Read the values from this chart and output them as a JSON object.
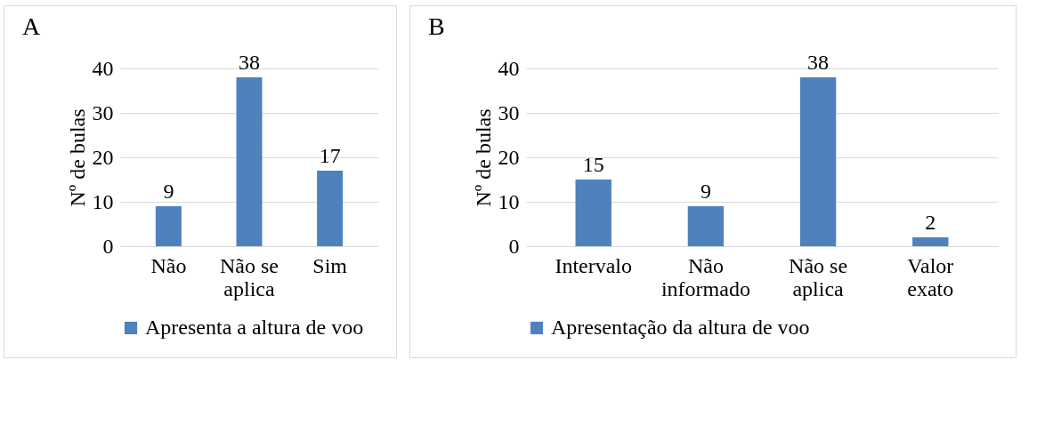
{
  "chart_data": [
    {
      "type": "bar",
      "title": "A",
      "ylabel": "Nº de bulas",
      "categories": [
        "Não",
        "Não se aplica",
        "Sim"
      ],
      "series": [
        {
          "name": "Apresenta a altura de voo",
          "color": "#4f81bd",
          "values": [
            9,
            38,
            17
          ]
        }
      ],
      "ylim": [
        0,
        40
      ],
      "yticks": [
        0,
        10,
        20,
        30,
        40
      ],
      "grid": "y",
      "legend": "bottom",
      "data_labels": true
    },
    {
      "type": "bar",
      "title": "B",
      "ylabel": "Nº de bulas",
      "categories": [
        "Intervalo",
        "Não informado",
        "Não se aplica",
        "Valor exato"
      ],
      "series": [
        {
          "name": "Apresentação da altura de voo",
          "color": "#4f81bd",
          "values": [
            15,
            9,
            38,
            2
          ]
        }
      ],
      "ylim": [
        0,
        40
      ],
      "yticks": [
        0,
        10,
        20,
        30,
        40
      ],
      "grid": "y",
      "legend": "bottom",
      "data_labels": true
    }
  ]
}
